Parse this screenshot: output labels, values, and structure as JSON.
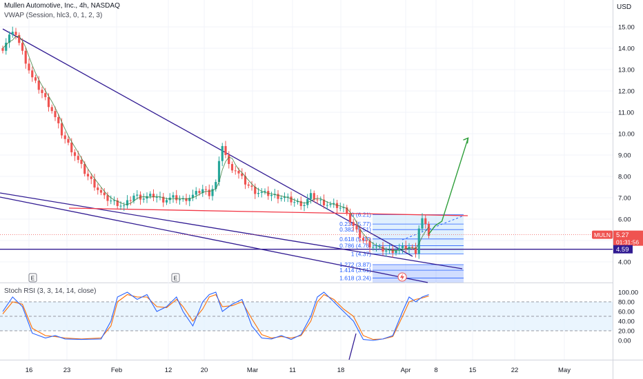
{
  "header": {
    "title": "Mullen Automotive, Inc., 4h, NASDAQ",
    "indicator": "VWAP (Session, hlc3, 0, 1, 2, 3)",
    "currency": "USD"
  },
  "rsi": {
    "label": "Stoch RSI (3, 3, 14, 14, close)",
    "ticks": [
      "100.00",
      "80.00",
      "60.00",
      "40.00",
      "20.00",
      "0.00"
    ],
    "tick_values": [
      100,
      80,
      60,
      40,
      20,
      0
    ]
  },
  "price_axis": {
    "ticks": [
      "15.00",
      "14.00",
      "13.00",
      "12.00",
      "11.00",
      "10.00",
      "9.00",
      "8.00",
      "7.00",
      "6.00",
      "5.00",
      "4.00"
    ],
    "tick_values": [
      15,
      14,
      13,
      12,
      11,
      10,
      9,
      8,
      7,
      6,
      5,
      4
    ]
  },
  "time_axis": {
    "labels": [
      "16",
      "23",
      "Feb",
      "12",
      "20",
      "Mar",
      "11",
      "18",
      "Apr",
      "8",
      "15",
      "22",
      "May"
    ]
  },
  "badges": {
    "ticker": "MULN",
    "last_price": "5.27",
    "countdown": "01:31:56",
    "level": "4.59"
  },
  "earnings_marker": "E",
  "fib_levels": [
    {
      "label": "0 (6.21)",
      "value": 6.21
    },
    {
      "label": "0.236 (5.77)",
      "value": 5.77
    },
    {
      "label": "0.382 (5.51)",
      "value": 5.51
    },
    {
      "label": "0.618 (5.07)",
      "value": 5.07
    },
    {
      "label": "0.786 (4.76)",
      "value": 4.76
    },
    {
      "label": "1 (4.37)",
      "value": 4.37
    },
    {
      "label": "1.272 (3.87)",
      "value": 3.87
    },
    {
      "label": "1.414 (3.61)",
      "value": 3.61
    },
    {
      "label": "1.618 (3.24)",
      "value": 3.24
    }
  ],
  "colors": {
    "up": "#26a69a",
    "down": "#ef5350",
    "trendline": "#311b92",
    "support": "#f23645",
    "arrow": "#2e9e3a",
    "fib": "#2962ff",
    "stoch_k": "#2962ff",
    "stoch_d": "#ff6d00"
  },
  "chart_data": {
    "type": "candlestick",
    "price_range": [
      3.2,
      15.9
    ],
    "key_levels": {
      "resistance": 6.21,
      "support": 4.59,
      "last": 5.27
    },
    "price_path": [
      [
        0,
        14.0
      ],
      [
        2,
        14.6
      ],
      [
        4,
        14.7
      ],
      [
        6,
        13.8
      ],
      [
        9,
        12.6
      ],
      [
        12,
        11.9
      ],
      [
        15,
        11.1
      ],
      [
        18,
        10.0
      ],
      [
        22,
        9.0
      ],
      [
        25,
        8.2
      ],
      [
        28,
        7.6
      ],
      [
        31,
        7.0
      ],
      [
        34,
        6.8
      ],
      [
        37,
        6.6
      ],
      [
        40,
        7.1
      ],
      [
        43,
        7.0
      ],
      [
        46,
        7.1
      ],
      [
        49,
        6.9
      ],
      [
        52,
        7.0
      ],
      [
        55,
        6.9
      ],
      [
        58,
        7.1
      ],
      [
        61,
        7.4
      ],
      [
        63,
        7.2
      ],
      [
        65,
        7.7
      ],
      [
        67,
        9.5
      ],
      [
        69,
        8.5
      ],
      [
        71,
        8.3
      ],
      [
        74,
        7.7
      ],
      [
        77,
        7.3
      ],
      [
        80,
        7.2
      ],
      [
        83,
        7.1
      ],
      [
        86,
        7.0
      ],
      [
        89,
        6.8
      ],
      [
        92,
        6.7
      ],
      [
        94,
        7.1
      ],
      [
        96,
        6.9
      ],
      [
        99,
        6.7
      ],
      [
        102,
        6.6
      ],
      [
        105,
        6.4
      ],
      [
        106,
        5.9
      ],
      [
        108,
        5.4
      ],
      [
        110,
        5.0
      ],
      [
        112,
        4.8
      ],
      [
        115,
        4.6
      ],
      [
        118,
        4.5
      ],
      [
        121,
        4.6
      ],
      [
        124,
        4.7
      ],
      [
        126,
        4.5
      ],
      [
        127,
        5.6
      ],
      [
        128,
        6.0
      ],
      [
        130,
        5.3
      ]
    ],
    "projection": [
      [
        132,
        5.7
      ],
      [
        134,
        5.9
      ],
      [
        142,
        9.8
      ]
    ],
    "stoch_rsi": {
      "k": [
        [
          0,
          60
        ],
        [
          3,
          90
        ],
        [
          6,
          70
        ],
        [
          9,
          15
        ],
        [
          13,
          5
        ],
        [
          16,
          10
        ],
        [
          19,
          3
        ],
        [
          24,
          2
        ],
        [
          30,
          3
        ],
        [
          33,
          40
        ],
        [
          35,
          90
        ],
        [
          38,
          100
        ],
        [
          41,
          85
        ],
        [
          44,
          95
        ],
        [
          47,
          60
        ],
        [
          50,
          70
        ],
        [
          53,
          90
        ],
        [
          55,
          60
        ],
        [
          58,
          30
        ],
        [
          61,
          80
        ],
        [
          63,
          95
        ],
        [
          65,
          100
        ],
        [
          67,
          60
        ],
        [
          70,
          75
        ],
        [
          73,
          85
        ],
        [
          76,
          30
        ],
        [
          79,
          5
        ],
        [
          82,
          3
        ],
        [
          85,
          10
        ],
        [
          88,
          2
        ],
        [
          91,
          12
        ],
        [
          94,
          50
        ],
        [
          96,
          90
        ],
        [
          98,
          100
        ],
        [
          101,
          80
        ],
        [
          104,
          60
        ],
        [
          107,
          40
        ],
        [
          110,
          2
        ],
        [
          113,
          0
        ],
        [
          116,
          3
        ],
        [
          119,
          10
        ],
        [
          122,
          60
        ],
        [
          124,
          90
        ],
        [
          126,
          80
        ],
        [
          128,
          90
        ],
        [
          130,
          95
        ]
      ],
      "d": [
        [
          0,
          55
        ],
        [
          3,
          80
        ],
        [
          6,
          75
        ],
        [
          9,
          25
        ],
        [
          13,
          10
        ],
        [
          16,
          8
        ],
        [
          19,
          5
        ],
        [
          24,
          3
        ],
        [
          30,
          5
        ],
        [
          33,
          30
        ],
        [
          35,
          80
        ],
        [
          38,
          95
        ],
        [
          41,
          90
        ],
        [
          44,
          90
        ],
        [
          47,
          70
        ],
        [
          50,
          68
        ],
        [
          53,
          85
        ],
        [
          55,
          70
        ],
        [
          58,
          40
        ],
        [
          61,
          65
        ],
        [
          63,
          90
        ],
        [
          65,
          95
        ],
        [
          67,
          70
        ],
        [
          70,
          72
        ],
        [
          73,
          80
        ],
        [
          76,
          45
        ],
        [
          79,
          12
        ],
        [
          82,
          5
        ],
        [
          85,
          8
        ],
        [
          88,
          5
        ],
        [
          91,
          10
        ],
        [
          94,
          40
        ],
        [
          96,
          80
        ],
        [
          98,
          95
        ],
        [
          101,
          85
        ],
        [
          104,
          65
        ],
        [
          107,
          50
        ],
        [
          110,
          10
        ],
        [
          113,
          2
        ],
        [
          116,
          3
        ],
        [
          119,
          8
        ],
        [
          122,
          50
        ],
        [
          124,
          80
        ],
        [
          126,
          85
        ],
        [
          128,
          88
        ],
        [
          130,
          92
        ]
      ]
    }
  }
}
